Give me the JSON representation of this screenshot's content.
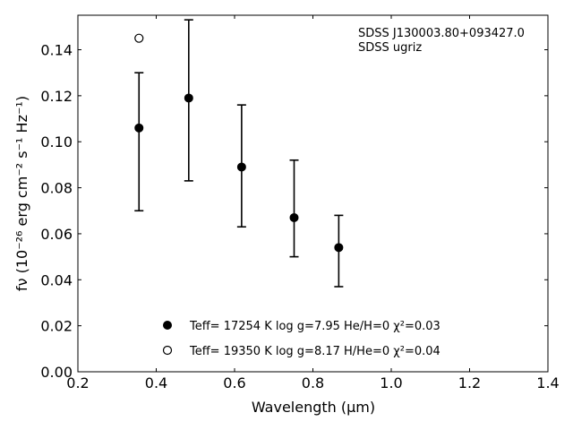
{
  "chart_data": {
    "type": "scatter",
    "annotations": [
      "SDSS J130003.80+093427.0",
      "SDSS ugriz"
    ],
    "xlabel": "Wavelength (μm)",
    "ylabel": "fν (10⁻²⁶ erg cm⁻² s⁻¹ Hz⁻¹)",
    "xlim": [
      0.2,
      1.4
    ],
    "ylim": [
      0.0,
      0.155
    ],
    "xticks": [
      "0.2",
      "0.4",
      "0.6",
      "0.8",
      "1.0",
      "1.2",
      "1.4"
    ],
    "yticks": [
      "0.00",
      "0.02",
      "0.04",
      "0.06",
      "0.08",
      "0.10",
      "0.12",
      "0.14"
    ],
    "grid": false,
    "legend_position": "bottom-center",
    "series": [
      {
        "name": "Teff= 17254 K  log g=7.95  He/H=0  χ²=0.03",
        "marker": "filled-circle",
        "color": "#000000",
        "x": [
          0.356,
          0.483,
          0.618,
          0.752,
          0.866
        ],
        "y": [
          0.106,
          0.119,
          0.089,
          0.067,
          0.054
        ],
        "yerr_low": [
          0.07,
          0.083,
          0.063,
          0.05,
          0.037
        ],
        "yerr_high": [
          0.13,
          0.153,
          0.116,
          0.092,
          0.068
        ]
      },
      {
        "name": "Teff= 19350 K  log g=8.17  H/He=0  χ²=0.04",
        "marker": "open-circle",
        "color": "#000000",
        "x": [
          0.356
        ],
        "y": [
          0.145
        ]
      }
    ]
  }
}
